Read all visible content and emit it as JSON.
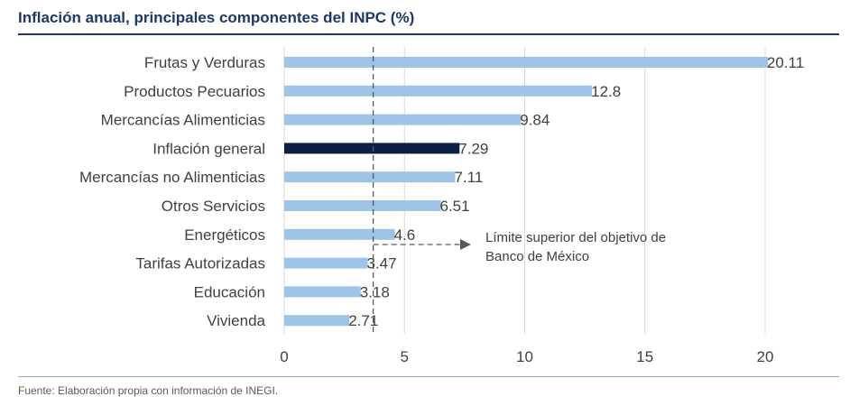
{
  "title": "Inflación anual, principales componentes del INPC (%)",
  "source": "Fuente: Elaboración propia con información de INEGI.",
  "colors": {
    "bar": "#9dc3e6",
    "highlight": "#0d1f45",
    "grid": "#d9d9d9",
    "title": "#1f3864",
    "reference_line": "#595959"
  },
  "chart_data": {
    "type": "bar",
    "orientation": "horizontal",
    "categories": [
      "Frutas y Verduras",
      "Productos Pecuarios",
      "Mercancías Alimenticias",
      "Inflación general",
      "Mercancías no Alimenticias",
      "Otros Servicios",
      "Energéticos",
      "Tarifas Autorizadas",
      "Educación",
      "Vivienda"
    ],
    "values": [
      20.11,
      12.8,
      9.84,
      7.29,
      7.11,
      6.51,
      4.6,
      3.47,
      3.18,
      2.71
    ],
    "value_labels": [
      "20.11",
      "12.8",
      "9.84",
      "7.29",
      "7.11",
      "6.51",
      "4.6",
      "3.47",
      "3.18",
      "2.71"
    ],
    "highlight_index": 3,
    "xlim": [
      0,
      20
    ],
    "xticks": [
      0,
      5,
      10,
      15,
      20
    ],
    "xtick_labels": [
      "0",
      "5",
      "10",
      "15",
      "20"
    ],
    "grid": "vertical",
    "legend": "none",
    "reference_line": {
      "value": 3.7,
      "style": "dashed",
      "annotation_lines": [
        "Límite superior del objetivo de",
        "Banco de México"
      ]
    }
  }
}
